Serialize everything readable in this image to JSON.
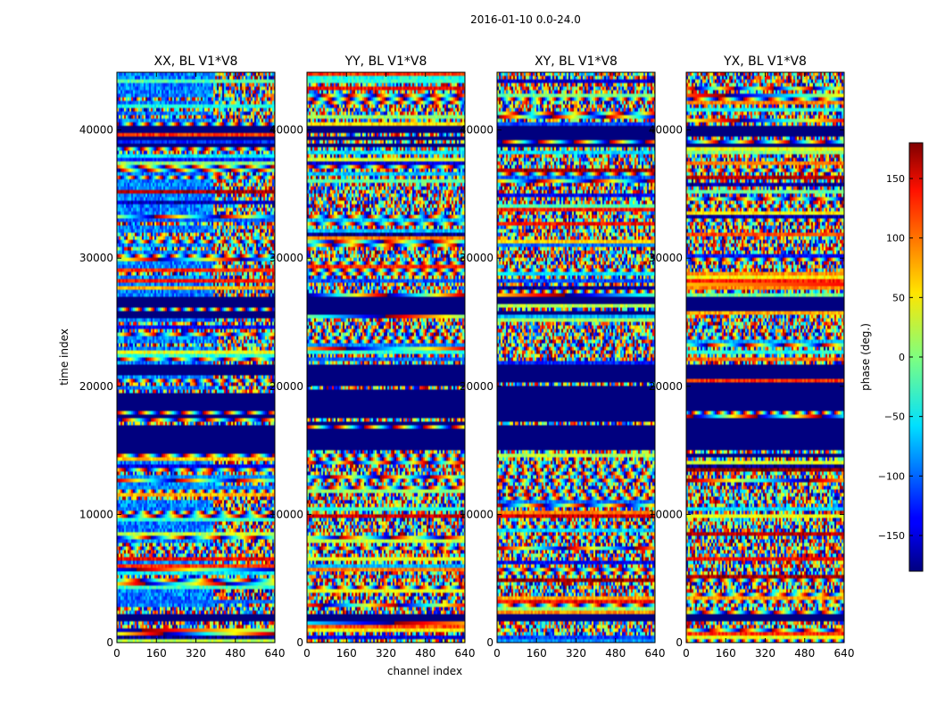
{
  "figure_title": "2016-01-10 0.0-24.0",
  "chart_data": {
    "type": "heatmap",
    "ylabel": "time index",
    "xlabel": "channel index",
    "x_range": [
      0,
      640
    ],
    "y_range": [
      0,
      44500
    ],
    "x_ticks": [
      "0",
      "160",
      "320",
      "480",
      "640"
    ],
    "x_tick_values": [
      0,
      160,
      320,
      480,
      640
    ],
    "y_ticks": [
      "0",
      "10000",
      "20000",
      "30000",
      "40000"
    ],
    "y_tick_values": [
      0,
      10000,
      20000,
      30000,
      40000
    ],
    "panels": [
      {
        "title": "XX, BL V1*V8",
        "pol": "XX"
      },
      {
        "title": "YY, BL V1*V8",
        "pol": "YY"
      },
      {
        "title": "XY, BL V1*V8",
        "pol": "XY"
      },
      {
        "title": "YX, BL V1*V8",
        "pol": "YX"
      }
    ],
    "flagged_time_ranges": [
      [
        38900,
        40600
      ],
      [
        25500,
        27100
      ],
      [
        14500,
        21700
      ],
      [
        1800,
        2300
      ]
    ],
    "colorbar": {
      "label": "phase (deg.)",
      "range": [
        -180,
        180
      ],
      "ticks": [
        "150",
        "100",
        "50",
        "0",
        "−50",
        "−100",
        "−150"
      ],
      "tick_values": [
        150,
        100,
        50,
        0,
        -50,
        -100,
        -150
      ],
      "colormap": "jet"
    }
  }
}
